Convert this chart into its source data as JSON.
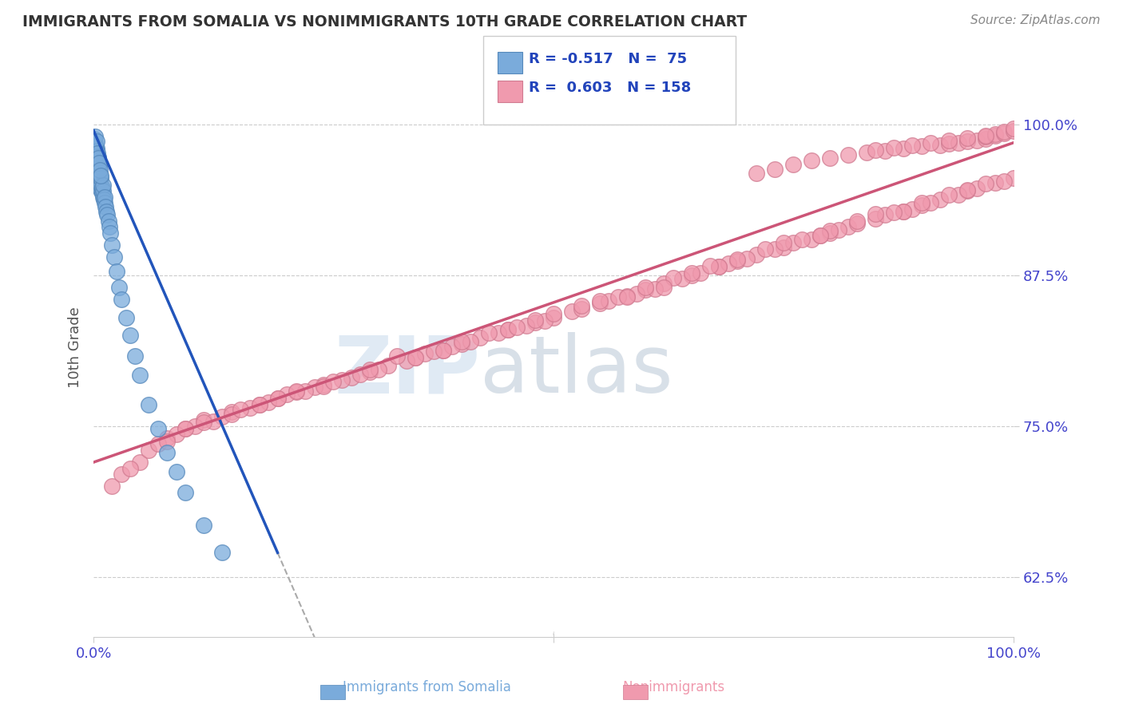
{
  "title": "IMMIGRANTS FROM SOMALIA VS NONIMMIGRANTS 10TH GRADE CORRELATION CHART",
  "source": "Source: ZipAtlas.com",
  "ylabel": "10th Grade",
  "ytick_labels": [
    "62.5%",
    "75.0%",
    "87.5%",
    "100.0%"
  ],
  "ytick_values": [
    0.625,
    0.75,
    0.875,
    1.0
  ],
  "blue_color": "#7aabdb",
  "blue_edge": "#5588bb",
  "pink_color": "#f09aae",
  "pink_edge": "#d07a90",
  "trend_blue": "#2255bb",
  "trend_pink": "#cc5577",
  "watermark_zip": "ZIP",
  "watermark_atlas": "atlas",
  "blue_scatter_x": [
    0.001,
    0.001,
    0.001,
    0.002,
    0.002,
    0.002,
    0.002,
    0.002,
    0.002,
    0.003,
    0.003,
    0.003,
    0.003,
    0.003,
    0.003,
    0.004,
    0.004,
    0.004,
    0.004,
    0.004,
    0.005,
    0.005,
    0.005,
    0.005,
    0.005,
    0.006,
    0.006,
    0.006,
    0.006,
    0.007,
    0.007,
    0.007,
    0.008,
    0.008,
    0.008,
    0.009,
    0.009,
    0.01,
    0.01,
    0.01,
    0.011,
    0.012,
    0.012,
    0.013,
    0.014,
    0.015,
    0.016,
    0.017,
    0.018,
    0.02,
    0.022,
    0.025,
    0.028,
    0.03,
    0.035,
    0.04,
    0.045,
    0.05,
    0.06,
    0.07,
    0.08,
    0.09,
    0.1,
    0.12,
    0.14,
    0.001,
    0.002,
    0.002,
    0.003,
    0.003,
    0.004,
    0.005,
    0.006,
    0.007,
    0.008
  ],
  "blue_scatter_y": [
    0.97,
    0.975,
    0.98,
    0.96,
    0.965,
    0.968,
    0.972,
    0.978,
    0.985,
    0.958,
    0.962,
    0.965,
    0.97,
    0.975,
    0.98,
    0.955,
    0.96,
    0.965,
    0.97,
    0.975,
    0.952,
    0.958,
    0.962,
    0.968,
    0.973,
    0.95,
    0.955,
    0.96,
    0.965,
    0.948,
    0.953,
    0.958,
    0.946,
    0.95,
    0.956,
    0.943,
    0.948,
    0.94,
    0.945,
    0.95,
    0.938,
    0.935,
    0.94,
    0.932,
    0.928,
    0.925,
    0.92,
    0.915,
    0.91,
    0.9,
    0.89,
    0.878,
    0.865,
    0.855,
    0.84,
    0.825,
    0.808,
    0.792,
    0.768,
    0.748,
    0.728,
    0.712,
    0.695,
    0.668,
    0.645,
    0.988,
    0.982,
    0.99,
    0.978,
    0.986,
    0.976,
    0.972,
    0.968,
    0.962,
    0.958
  ],
  "pink_scatter_x": [
    0.02,
    0.05,
    0.08,
    0.1,
    0.12,
    0.15,
    0.18,
    0.2,
    0.22,
    0.25,
    0.28,
    0.3,
    0.32,
    0.35,
    0.38,
    0.4,
    0.42,
    0.45,
    0.48,
    0.5,
    0.52,
    0.55,
    0.58,
    0.6,
    0.62,
    0.65,
    0.68,
    0.7,
    0.72,
    0.75,
    0.78,
    0.8,
    0.82,
    0.85,
    0.88,
    0.9,
    0.92,
    0.95,
    0.98,
    1.0,
    0.06,
    0.09,
    0.11,
    0.14,
    0.17,
    0.19,
    0.21,
    0.24,
    0.27,
    0.29,
    0.31,
    0.34,
    0.36,
    0.39,
    0.41,
    0.44,
    0.47,
    0.49,
    0.53,
    0.56,
    0.59,
    0.61,
    0.64,
    0.66,
    0.69,
    0.71,
    0.74,
    0.76,
    0.79,
    0.81,
    0.83,
    0.86,
    0.89,
    0.91,
    0.94,
    0.96,
    0.99,
    0.72,
    0.74,
    0.76,
    0.78,
    0.8,
    0.82,
    0.84,
    0.86,
    0.88,
    0.9,
    0.92,
    0.93,
    0.94,
    0.95,
    0.96,
    0.97,
    0.97,
    0.98,
    0.98,
    0.99,
    0.99,
    1.0,
    1.0,
    0.85,
    0.87,
    0.89,
    0.91,
    0.93,
    0.95,
    0.97,
    0.1,
    0.2,
    0.3,
    0.4,
    0.5,
    0.6,
    0.7,
    0.8,
    0.9,
    0.95,
    0.15,
    0.25,
    0.35,
    0.45,
    0.55,
    0.65,
    0.75,
    0.85,
    0.13,
    0.23,
    0.43,
    0.53,
    0.63,
    0.73,
    0.83,
    0.93,
    0.07,
    0.33,
    0.57,
    0.77,
    0.03,
    0.48,
    0.68,
    0.88,
    0.16,
    0.37,
    0.58,
    0.79,
    0.26,
    0.46,
    0.67,
    0.87,
    0.97,
    0.04,
    0.08,
    0.12,
    0.18,
    0.22,
    0.38,
    0.62
  ],
  "pink_scatter_y": [
    0.7,
    0.72,
    0.74,
    0.748,
    0.755,
    0.762,
    0.768,
    0.773,
    0.778,
    0.784,
    0.79,
    0.795,
    0.8,
    0.807,
    0.813,
    0.818,
    0.823,
    0.83,
    0.836,
    0.84,
    0.845,
    0.852,
    0.858,
    0.863,
    0.868,
    0.875,
    0.882,
    0.887,
    0.892,
    0.898,
    0.905,
    0.91,
    0.915,
    0.922,
    0.928,
    0.933,
    0.938,
    0.945,
    0.952,
    0.956,
    0.73,
    0.743,
    0.75,
    0.758,
    0.765,
    0.77,
    0.776,
    0.782,
    0.788,
    0.793,
    0.797,
    0.804,
    0.81,
    0.816,
    0.82,
    0.827,
    0.833,
    0.837,
    0.847,
    0.854,
    0.86,
    0.864,
    0.872,
    0.877,
    0.885,
    0.889,
    0.897,
    0.902,
    0.908,
    0.913,
    0.918,
    0.925,
    0.93,
    0.935,
    0.942,
    0.947,
    0.953,
    0.96,
    0.963,
    0.967,
    0.97,
    0.972,
    0.975,
    0.977,
    0.978,
    0.98,
    0.982,
    0.983,
    0.984,
    0.985,
    0.986,
    0.987,
    0.988,
    0.99,
    0.991,
    0.992,
    0.993,
    0.994,
    0.995,
    0.997,
    0.979,
    0.981,
    0.983,
    0.985,
    0.987,
    0.989,
    0.991,
    0.748,
    0.773,
    0.797,
    0.82,
    0.843,
    0.865,
    0.888,
    0.912,
    0.935,
    0.946,
    0.76,
    0.783,
    0.807,
    0.83,
    0.854,
    0.877,
    0.902,
    0.926,
    0.754,
    0.779,
    0.827,
    0.85,
    0.873,
    0.897,
    0.92,
    0.942,
    0.735,
    0.808,
    0.857,
    0.905,
    0.71,
    0.838,
    0.882,
    0.928,
    0.764,
    0.812,
    0.857,
    0.908,
    0.787,
    0.832,
    0.883,
    0.927,
    0.951,
    0.715,
    0.737,
    0.753,
    0.768,
    0.779,
    0.813,
    0.865
  ],
  "blue_line_x": [
    0.0,
    0.2
  ],
  "blue_line_y_start": 0.995,
  "blue_line_slope": -1.75,
  "gray_line_x": [
    0.2,
    0.7
  ],
  "pink_line_x": [
    0.0,
    1.0
  ],
  "pink_line_y_start": 0.72,
  "pink_line_slope": 0.265,
  "xlim": [
    0.0,
    1.0
  ],
  "ylim": [
    0.575,
    1.055
  ]
}
